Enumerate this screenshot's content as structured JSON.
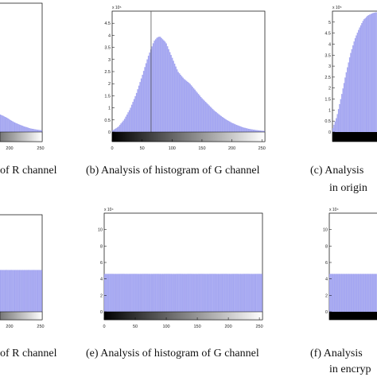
{
  "colors": {
    "bar_fill": "#a8aaf2",
    "bar_edge": "#7b7ee6",
    "axis": "#000000",
    "marker": "#555555"
  },
  "captions": {
    "a_top": "of R channel",
    "b_top": "(b) Analysis of histogram of G channel",
    "c_top_1": "(c) Analysis",
    "c_top_2": "in origin",
    "d_bottom": "of R channel",
    "e_bottom": "(e) Analysis of histogram of G channel",
    "f_bottom_1": "(f) Analysis",
    "f_bottom_2": "in encryp"
  },
  "chart_data": [
    {
      "id": "a",
      "type": "bar",
      "note": "partially visible panel (cropped on left)",
      "x_ticks": [
        200,
        250
      ],
      "xlim": [
        0,
        255
      ],
      "series": [
        {
          "x": [
            150,
            165,
            180,
            195,
            210,
            225,
            240,
            255
          ],
          "y_scaled": [
            0.9,
            0.75,
            0.55,
            0.4,
            0.28,
            0.18,
            0.12,
            0.08
          ]
        }
      ]
    },
    {
      "id": "b",
      "type": "bar",
      "exponent_label": "x 10⁵",
      "y_ticks": [
        0,
        0.5,
        1,
        1.5,
        2,
        2.5,
        3,
        3.5,
        4,
        4.5
      ],
      "x_ticks": [
        0,
        50,
        100,
        150,
        200,
        250
      ],
      "ylim": [
        0,
        5
      ],
      "xlim": [
        0,
        255
      ],
      "marker_x": 65,
      "series": [
        {
          "x": [
            0,
            10,
            20,
            30,
            40,
            50,
            60,
            70,
            75,
            80,
            90,
            100,
            110,
            120,
            130,
            140,
            150,
            160,
            170,
            180,
            190,
            200,
            210,
            220,
            230,
            240,
            250,
            255
          ],
          "y": [
            0.05,
            0.2,
            0.5,
            0.95,
            1.55,
            2.3,
            3.1,
            3.75,
            3.9,
            3.95,
            3.7,
            3.1,
            2.5,
            2.2,
            2.0,
            1.7,
            1.4,
            1.15,
            0.9,
            0.7,
            0.52,
            0.38,
            0.27,
            0.18,
            0.12,
            0.08,
            0.05,
            0.04
          ]
        }
      ]
    },
    {
      "id": "c",
      "type": "bar",
      "note": "partially visible panel (cropped on right)",
      "exponent_label": "x 10⁵",
      "y_ticks": [
        0,
        0.5,
        1,
        1.5,
        2,
        2.5,
        3,
        3.5,
        4,
        4.5,
        5
      ],
      "ylim": [
        0,
        5.5
      ],
      "series": [
        {
          "x": [
            0,
            5,
            10,
            15,
            20,
            25,
            30,
            35,
            40,
            45,
            50
          ],
          "y": [
            0.1,
            0.7,
            1.6,
            2.6,
            3.5,
            4.2,
            4.7,
            5.1,
            5.3,
            5.4,
            5.45
          ]
        }
      ]
    },
    {
      "id": "d",
      "type": "bar",
      "note": "partially visible panel (cropped on left)",
      "x_ticks": [
        200,
        250
      ],
      "xlim": [
        0,
        255
      ],
      "flat_level_fraction": 0.43
    },
    {
      "id": "e",
      "type": "bar",
      "exponent_label": "x 10⁴",
      "y_ticks": [
        0,
        2,
        4,
        6,
        8,
        10
      ],
      "x_ticks": [
        0,
        50,
        100,
        150,
        200,
        250
      ],
      "ylim": [
        0,
        12
      ],
      "xlim": [
        0,
        255
      ],
      "flat_value": 4.6
    },
    {
      "id": "f",
      "type": "bar",
      "note": "partially visible panel (cropped on right)",
      "exponent_label": "x 10⁴",
      "y_ticks": [
        0,
        2,
        4,
        6,
        8,
        10
      ],
      "ylim": [
        0,
        12
      ],
      "flat_value": 4.6
    }
  ]
}
